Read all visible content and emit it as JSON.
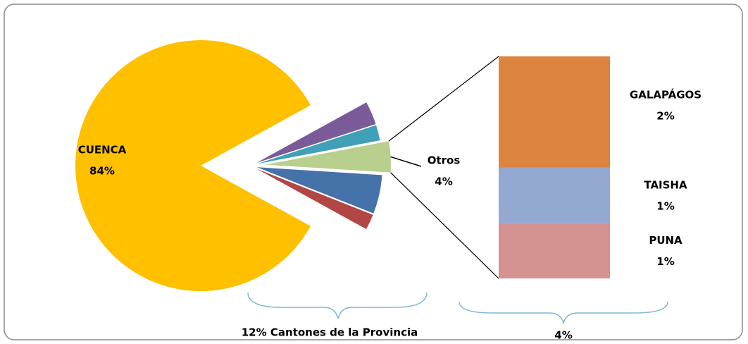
{
  "chart_data": {
    "type": "pie-of-bar",
    "categories": [
      "CUENCA",
      null,
      null,
      "Otros",
      null,
      null
    ],
    "values": [
      84,
      3,
      2,
      4,
      5,
      2
    ],
    "value_labels": [
      "84%",
      null,
      null,
      "4%",
      null,
      null
    ],
    "colors": [
      "#ffc000",
      "#7a5a99",
      "#3fa0b8",
      "#b8cf8e",
      "#4672aa",
      "#b24644"
    ],
    "bar": {
      "categories": [
        "GALAPÁGOS",
        "TAISHA",
        "PUNA"
      ],
      "values": [
        2,
        1,
        1
      ],
      "value_labels": [
        "2%",
        "1%",
        "1%"
      ],
      "colors": [
        "#dc843f",
        "#94a9d1",
        "#d39290"
      ]
    },
    "annotations": [
      "12% Cantones de la Provincia",
      "4%"
    ]
  }
}
